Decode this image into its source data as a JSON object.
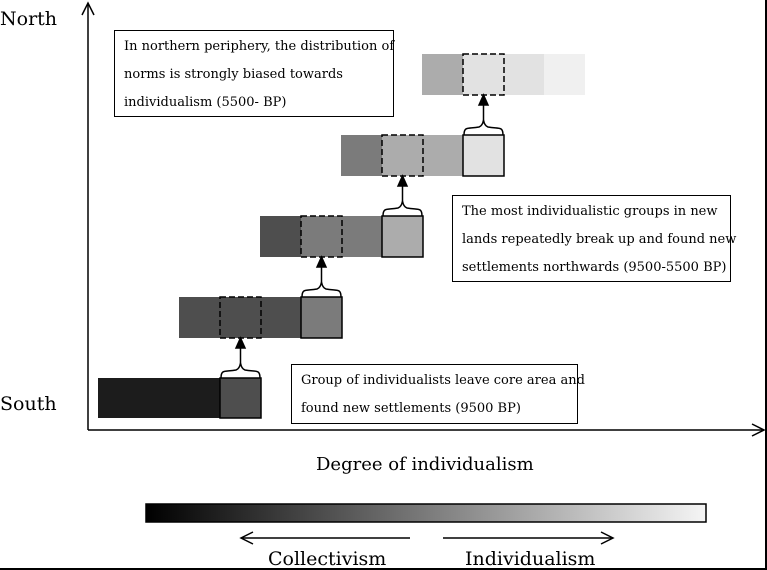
{
  "axes": {
    "y_top": "North",
    "y_bottom": "South",
    "x_label": "Degree of individualism"
  },
  "scale": {
    "left_label": "Collectivism",
    "right_label": "Individualism"
  },
  "notes": {
    "top": [
      "In northern periphery, the distribution of",
      "norms is strongly biased towards",
      "individualism (5500- BP)"
    ],
    "middle": [
      "The most individualistic groups in new",
      "lands repeatedly break up and found new",
      "settlements northwards (9500-5500 BP)"
    ],
    "bottom": [
      "Group of individualists leave core area and",
      "found new settlements (9500 BP)"
    ]
  },
  "colors": {
    "row1": "#1c1c1c",
    "row1_selected": "#4e4e4e",
    "row2": "#4e4e4e",
    "row2_selected": "#7b7b7b",
    "row3_dark": "#4e4e4e",
    "row3_mid": "#7b7b7b",
    "row3_selected": "#acacac",
    "row4_dark": "#7b7b7b",
    "row4_mid": "#acacac",
    "row4_selected": "#e2e2e2",
    "row5_dark": "#acacac",
    "row5_mid": "#e2e2e2",
    "row5_light": "#f0f0f0"
  }
}
